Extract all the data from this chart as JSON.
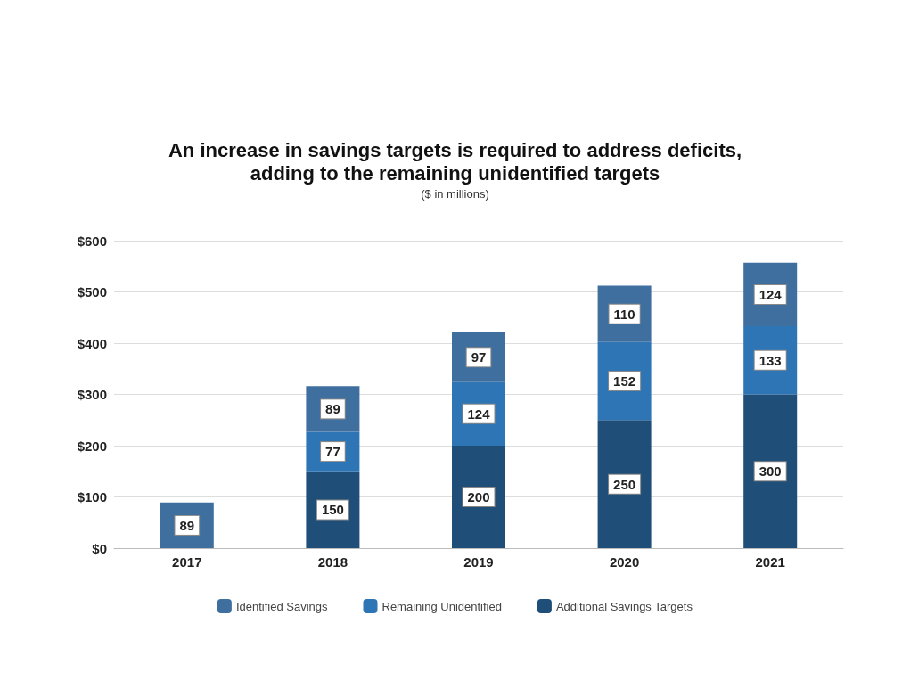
{
  "chart_data": {
    "type": "bar",
    "title": "An increase in savings targets is required to address deficits,\nadding to the remaining unidentified targets",
    "subtitle": "($ in millions)",
    "categories": [
      "2017",
      "2018",
      "2019",
      "2020",
      "2021"
    ],
    "stacked": true,
    "series": [
      {
        "name": "Additional Savings Targets",
        "color": "#1f4e79",
        "values": [
          null,
          150,
          200,
          250,
          300
        ]
      },
      {
        "name": "Remaining Unidentified",
        "color": "#2e75b6",
        "values": [
          null,
          77,
          124,
          152,
          133
        ]
      },
      {
        "name": "Identified Savings",
        "color": "#3f6f9f",
        "values": [
          89,
          89,
          97,
          110,
          124
        ]
      }
    ],
    "ylim": [
      0,
      600
    ],
    "yticks": [
      {
        "value": 0,
        "label": "$0"
      },
      {
        "value": 100,
        "label": "$100"
      },
      {
        "value": 200,
        "label": "$200"
      },
      {
        "value": 300,
        "label": "$300"
      },
      {
        "value": 400,
        "label": "$400"
      },
      {
        "value": 500,
        "label": "$500"
      },
      {
        "value": 600,
        "label": "$600"
      }
    ],
    "grid": "y",
    "legend": "bottom",
    "data_labels": true
  }
}
